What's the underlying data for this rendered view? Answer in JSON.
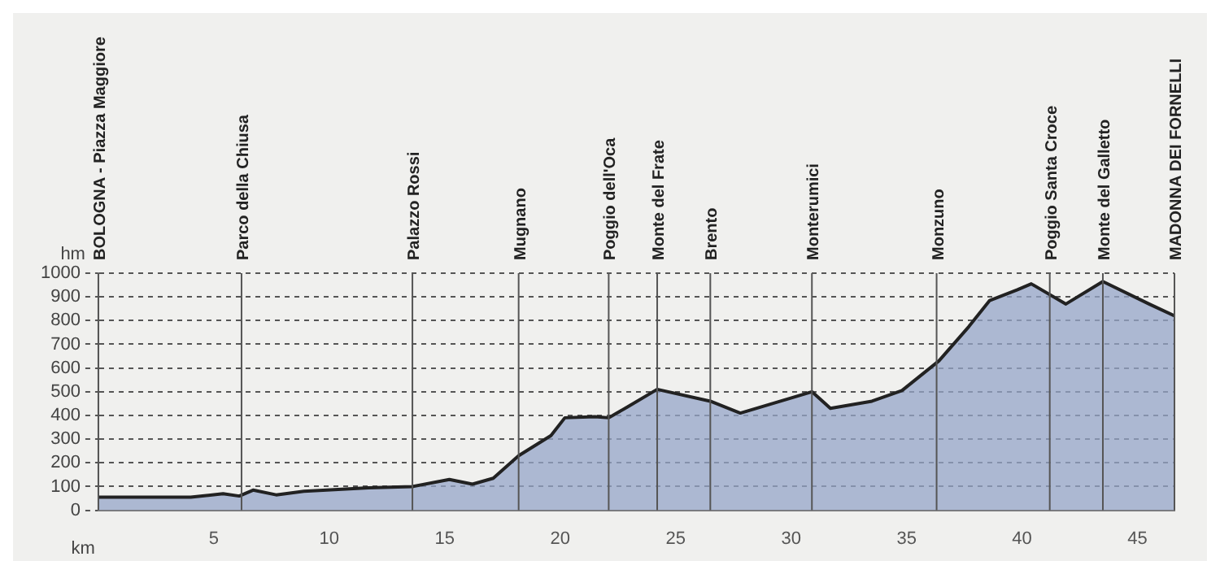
{
  "chart_data": {
    "type": "area",
    "xlabel": "km",
    "ylabel": "hm",
    "x": [
      0,
      4,
      5.4,
      6.1,
      6.7,
      7.7,
      8.9,
      11.7,
      13.6,
      15.2,
      16.2,
      17.1,
      18.2,
      19.6,
      20.2,
      21.5,
      22.1,
      22.9,
      24.2,
      26.5,
      27.8,
      30.9,
      31.7,
      33.5,
      34.8,
      36.4,
      37.7,
      38.6,
      39.8,
      40.4,
      41.9,
      43.5,
      45.5,
      46.6
    ],
    "series": [
      {
        "color": "#222222",
        "values": [
          55,
          55,
          70,
          60,
          85,
          65,
          80,
          95,
          100,
          130,
          110,
          135,
          230,
          315,
          390,
          395,
          390,
          435,
          510,
          460,
          410,
          500,
          430,
          460,
          505,
          630,
          775,
          885,
          930,
          955,
          870,
          965,
          870,
          820
        ]
      }
    ],
    "xlim": [
      0,
      46.6
    ],
    "xticks": [
      5,
      10,
      15,
      20,
      25,
      30,
      35,
      40,
      45
    ],
    "ylim": [
      0,
      1000
    ],
    "yticks": [
      0,
      100,
      200,
      300,
      400,
      500,
      600,
      700,
      800,
      900,
      1000
    ],
    "grid": "y",
    "legend": false,
    "marker": "none",
    "line_style": "solid",
    "ref_lines": [
      {
        "axis": "x",
        "value": 0,
        "label": "BOLOGNA - Piazza Maggiore"
      },
      {
        "axis": "x",
        "value": 6.2,
        "label": "Parco della Chiusa"
      },
      {
        "axis": "x",
        "value": 13.6,
        "label": "Palazzo Rossi"
      },
      {
        "axis": "x",
        "value": 18.2,
        "label": "Mugnano"
      },
      {
        "axis": "x",
        "value": 22.1,
        "label": "Poggio dell'Oca"
      },
      {
        "axis": "x",
        "value": 24.2,
        "label": "Monte del Frate"
      },
      {
        "axis": "x",
        "value": 26.5,
        "label": "Brento"
      },
      {
        "axis": "x",
        "value": 30.9,
        "label": "Monterumici"
      },
      {
        "axis": "x",
        "value": 36.3,
        "label": "Monzuno"
      },
      {
        "axis": "x",
        "value": 41.2,
        "label": "Poggio Santa Croce"
      },
      {
        "axis": "x",
        "value": 43.5,
        "label": "Monte del Galletto"
      },
      {
        "axis": "x",
        "value": 46.6,
        "label": "MADONNA DEI FORNELLI"
      }
    ]
  }
}
